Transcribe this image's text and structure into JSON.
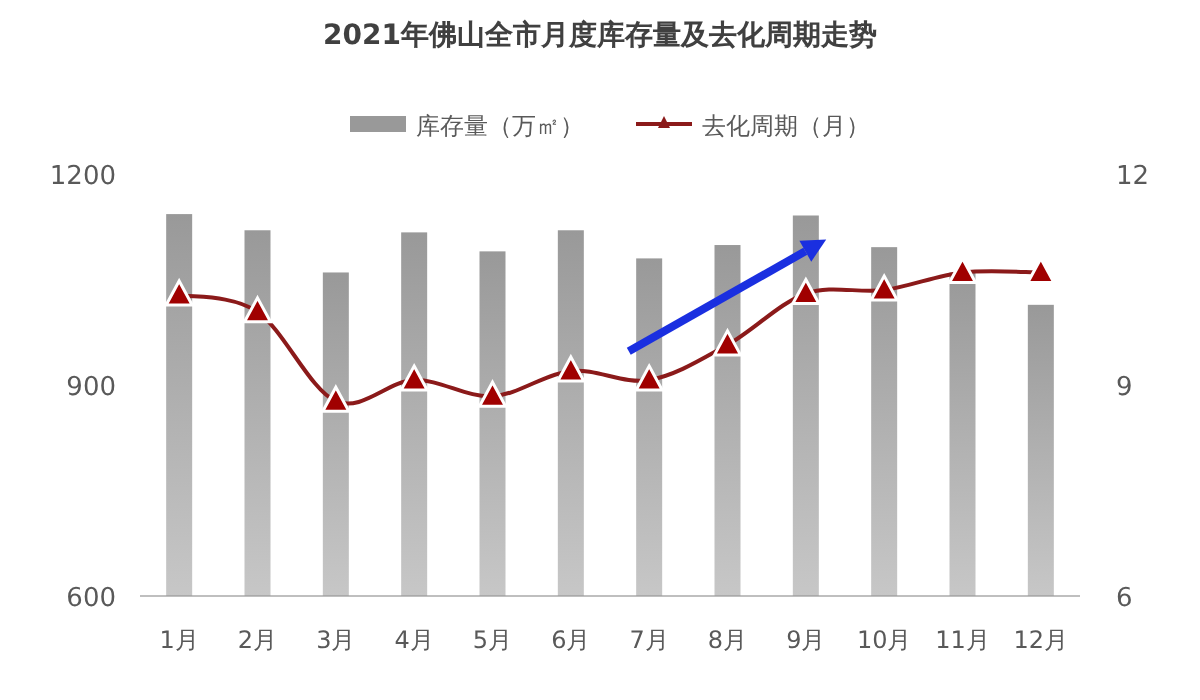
{
  "chart_data": {
    "type": "bar",
    "title": "2021年佛山全市月度库存量及去化周期走势",
    "categories": [
      "1月",
      "2月",
      "3月",
      "4月",
      "5月",
      "6月",
      "7月",
      "8月",
      "9月",
      "10月",
      "11月",
      "12月"
    ],
    "series": [
      {
        "name": "库存量（万㎡）",
        "color": "#999999",
        "values": [
          1143,
          1120,
          1060,
          1117,
          1090,
          1120,
          1080,
          1099,
          1141,
          1096,
          1060,
          1014
        ]
      },
      {
        "name": "去化周期（月）",
        "type": "line",
        "axis": "y2",
        "color": "#8b1a1a",
        "marker": "triangle",
        "values": [
          10.28,
          10.04,
          8.77,
          9.07,
          8.84,
          9.2,
          9.07,
          9.57,
          10.3,
          10.35,
          10.6,
          10.6
        ]
      }
    ],
    "ylim": [
      600,
      1200
    ],
    "yticks": [
      600,
      900,
      1200
    ],
    "y2lim": [
      6,
      12
    ],
    "y2ticks": [
      6,
      9,
      12
    ],
    "legend": "top",
    "grid": false
  }
}
